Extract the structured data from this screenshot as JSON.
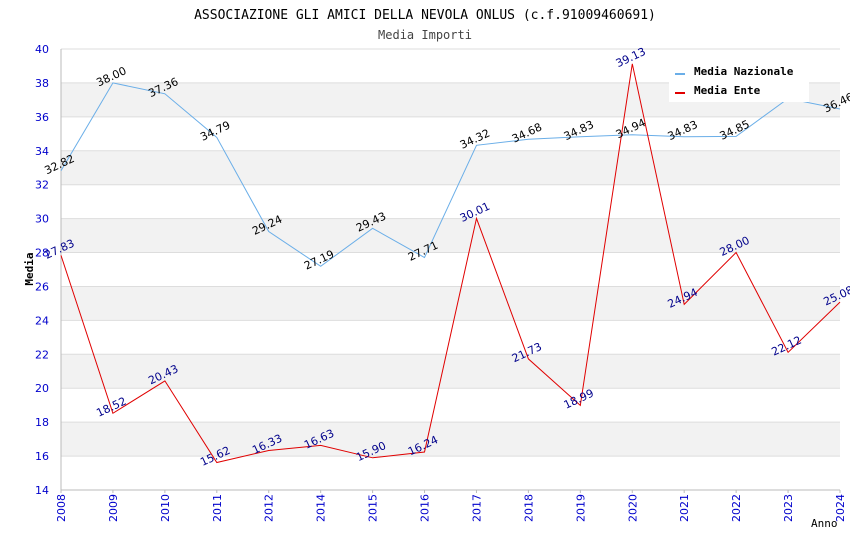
{
  "chart_data": {
    "type": "line",
    "title": "ASSOCIAZIONE GLI AMICI DELLA NEVOLA ONLUS (c.f.91009460691)",
    "subtitle": "Media Importi",
    "xlabel": "Anno",
    "ylabel": "Media",
    "ylim": [
      14,
      40
    ],
    "yticks": [
      "14",
      "16",
      "18",
      "20",
      "22",
      "24",
      "26",
      "28",
      "30",
      "32",
      "34",
      "36",
      "38",
      "40"
    ],
    "categories": [
      "2008",
      "2009",
      "2010",
      "2011",
      "2012",
      "2014",
      "2015",
      "2016",
      "2017",
      "2018",
      "2019",
      "2020",
      "2021",
      "2022",
      "2023",
      "2024"
    ],
    "grid": "horizontal bands",
    "legend_position": "top-right",
    "series": [
      {
        "name": "Media Nazionale",
        "color": "#6aaee8",
        "label_color": "#000000",
        "values": [
          32.82,
          38.0,
          37.36,
          34.79,
          29.24,
          27.19,
          29.43,
          27.71,
          34.32,
          34.68,
          34.83,
          34.94,
          34.83,
          34.85,
          37.08,
          36.46
        ],
        "labels": [
          "32.82",
          "38.00",
          "37.36",
          "34.79",
          "29.24",
          "27.19",
          "29.43",
          "27.71",
          "34.32",
          "34.68",
          "34.83",
          "34.94",
          "34.83",
          "34.85",
          "",
          "36.46"
        ]
      },
      {
        "name": "Media Ente",
        "color": "#e00000",
        "label_color": "#00008b",
        "values": [
          27.83,
          18.52,
          20.43,
          15.62,
          16.33,
          16.63,
          15.9,
          16.24,
          30.01,
          21.73,
          18.99,
          39.13,
          24.94,
          28.0,
          22.12,
          25.08
        ],
        "labels": [
          "27.83",
          "18.52",
          "20.43",
          "15.62",
          "16.33",
          "16.63",
          "15.90",
          "16.24",
          "30.01",
          "21.73",
          "18.99",
          "39.13",
          "24.94",
          "28.00",
          "22.12",
          "25.08"
        ]
      }
    ]
  }
}
